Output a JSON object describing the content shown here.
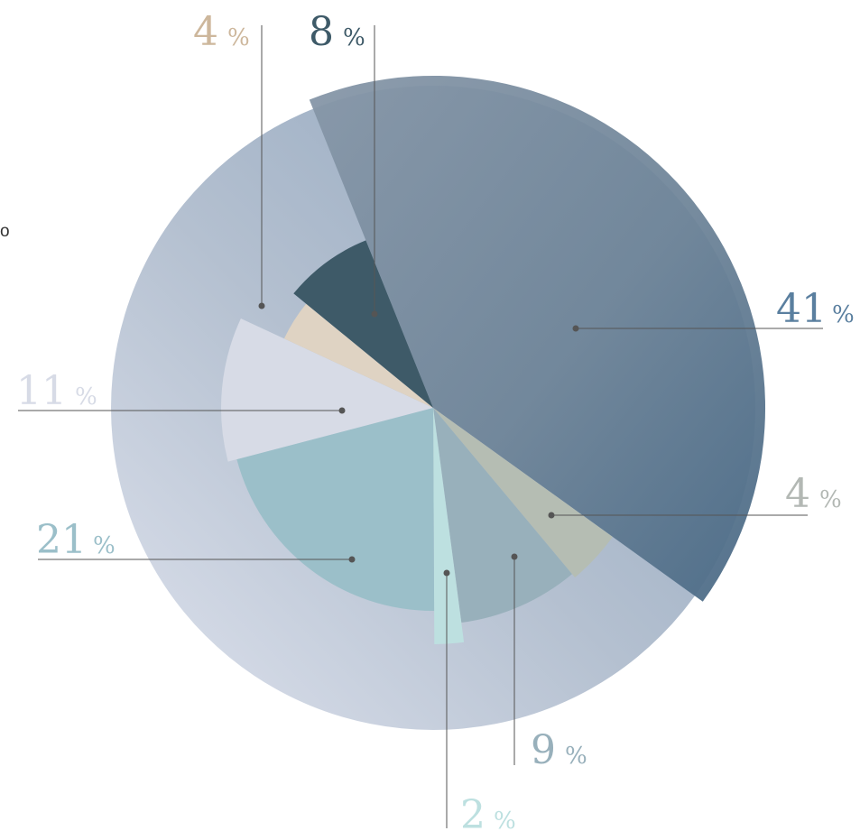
{
  "stray_text": "o",
  "chart_data": {
    "type": "pie",
    "title": "",
    "slices": [
      {
        "value": 41,
        "number": "41",
        "percent_sign": "%",
        "color": "#5a7f9f"
      },
      {
        "value": 4,
        "number": "4",
        "percent_sign": "%",
        "color": "#b5bdb3"
      },
      {
        "value": 9,
        "number": "9",
        "percent_sign": "%",
        "color": "#98b0bb"
      },
      {
        "value": 2,
        "number": "2",
        "percent_sign": "%",
        "color": "#bde0e0"
      },
      {
        "value": 21,
        "number": "21",
        "percent_sign": "%",
        "color": "#9bbfc9"
      },
      {
        "value": 11,
        "number": "11",
        "percent_sign": "%",
        "color": "#d7dbe6"
      },
      {
        "value": 4,
        "number": "4",
        "percent_sign": "%",
        "color": "#dfd3c3"
      },
      {
        "value": 8,
        "number": "8",
        "percent_sign": "%",
        "color": "#3e5a68"
      }
    ],
    "colors": {
      "outer_ring_light": "#e7ebf3",
      "outer_ring_mid": "#a4b3c6",
      "outer_ring_dark": "#8ea4bb",
      "leader_line": "#555555"
    }
  }
}
